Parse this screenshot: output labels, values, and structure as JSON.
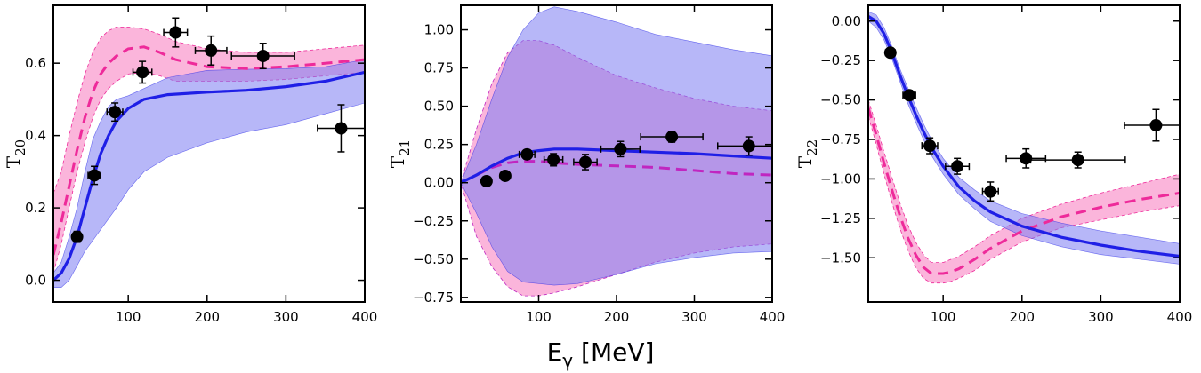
{
  "figure": {
    "xlabel": "E",
    "xlabel_sub": "γ",
    "xlabel_unit": " [MeV]"
  },
  "chart_data": [
    {
      "type": "line",
      "ylabel": "T",
      "ylabel_sub": "20",
      "xlim": [
        5,
        400
      ],
      "ylim": [
        -0.06,
        0.76
      ],
      "xticks": [
        100,
        200,
        300,
        400
      ],
      "xtick_labels": [
        "100",
        "200",
        "300",
        "400"
      ],
      "yticks": [
        0.0,
        0.2,
        0.4,
        0.6
      ],
      "ytick_labels": [
        "0.0",
        "0.2",
        "0.4",
        "0.6"
      ],
      "colors": {
        "blue_line": "#1f1fe6",
        "blue_band": "#7b7bf2",
        "pink_line": "#ee2a9a",
        "pink_band": "#f98ec8",
        "points": "#000000"
      },
      "blue_curve": {
        "x": [
          5,
          15,
          25,
          35,
          45,
          55,
          65,
          75,
          85,
          100,
          120,
          150,
          200,
          250,
          300,
          350,
          400
        ],
        "y": [
          0.0,
          0.02,
          0.06,
          0.12,
          0.2,
          0.28,
          0.35,
          0.4,
          0.44,
          0.475,
          0.5,
          0.513,
          0.52,
          0.525,
          0.535,
          0.55,
          0.575
        ]
      },
      "blue_band": {
        "x": [
          5,
          15,
          25,
          35,
          45,
          55,
          65,
          75,
          85,
          100,
          120,
          150,
          200,
          250,
          300,
          350,
          400
        ],
        "lower": [
          -0.02,
          -0.02,
          0.0,
          0.04,
          0.08,
          0.11,
          0.14,
          0.17,
          0.2,
          0.25,
          0.3,
          0.34,
          0.38,
          0.41,
          0.43,
          0.46,
          0.49
        ],
        "upper": [
          0.02,
          0.05,
          0.12,
          0.2,
          0.3,
          0.39,
          0.44,
          0.48,
          0.5,
          0.51,
          0.53,
          0.56,
          0.58,
          0.583,
          0.585,
          0.59,
          0.61
        ]
      },
      "pink_curve": {
        "x": [
          5,
          15,
          25,
          35,
          45,
          55,
          65,
          75,
          85,
          100,
          120,
          140,
          160,
          200,
          250,
          300,
          350,
          400
        ],
        "y": [
          0.07,
          0.16,
          0.26,
          0.36,
          0.45,
          0.52,
          0.57,
          0.6,
          0.62,
          0.64,
          0.645,
          0.63,
          0.61,
          0.59,
          0.585,
          0.59,
          0.6,
          0.61
        ]
      },
      "pink_band": {
        "x": [
          5,
          15,
          25,
          35,
          45,
          55,
          65,
          75,
          85,
          100,
          120,
          140,
          160,
          200,
          250,
          300,
          350,
          400
        ],
        "lower": [
          0.02,
          0.1,
          0.2,
          0.3,
          0.38,
          0.45,
          0.5,
          0.53,
          0.55,
          0.57,
          0.575,
          0.565,
          0.55,
          0.55,
          0.55,
          0.555,
          0.565,
          0.575
        ],
        "upper": [
          0.24,
          0.3,
          0.4,
          0.49,
          0.57,
          0.63,
          0.67,
          0.69,
          0.7,
          0.7,
          0.695,
          0.68,
          0.66,
          0.64,
          0.63,
          0.63,
          0.64,
          0.65
        ]
      },
      "points": [
        {
          "x": 35,
          "y": 0.12,
          "xerr": 5,
          "yerr": 0.015
        },
        {
          "x": 57,
          "y": 0.29,
          "xerr": 8,
          "yerr": 0.025
        },
        {
          "x": 83,
          "y": 0.465,
          "xerr": 10,
          "yerr": 0.025
        },
        {
          "x": 118,
          "y": 0.575,
          "xerr": 12,
          "yerr": 0.03
        },
        {
          "x": 160,
          "y": 0.685,
          "xerr": 15,
          "yerr": 0.04
        },
        {
          "x": 205,
          "y": 0.635,
          "xerr": 20,
          "yerr": 0.04
        },
        {
          "x": 271,
          "y": 0.62,
          "xerr": 40,
          "yerr": 0.035
        },
        {
          "x": 370,
          "y": 0.42,
          "xerr": 30,
          "yerr": 0.065
        }
      ]
    },
    {
      "type": "line",
      "ylabel": "T",
      "ylabel_sub": "21",
      "xlim": [
        0,
        400
      ],
      "ylim": [
        -0.78,
        1.16
      ],
      "xticks": [
        100,
        200,
        300,
        400
      ],
      "xtick_labels": [
        "100",
        "200",
        "300",
        "400"
      ],
      "yticks": [
        -0.75,
        -0.5,
        -0.25,
        0.0,
        0.25,
        0.5,
        0.75,
        1.0
      ],
      "ytick_labels": [
        "−0.75",
        "−0.50",
        "−0.25",
        "0.00",
        "0.25",
        "0.50",
        "0.75",
        "1.00"
      ],
      "colors": {
        "blue_line": "#1f1fe6",
        "blue_band": "#7b7bf2",
        "pink_line": "#c026c0",
        "pink_band": "#f98ec8",
        "points": "#000000"
      },
      "blue_curve": {
        "x": [
          0,
          20,
          40,
          60,
          80,
          100,
          120,
          150,
          200,
          250,
          300,
          350,
          400
        ],
        "y": [
          0.0,
          0.05,
          0.11,
          0.16,
          0.195,
          0.21,
          0.22,
          0.22,
          0.21,
          0.2,
          0.19,
          0.175,
          0.16
        ]
      },
      "blue_band": {
        "x": [
          0,
          20,
          40,
          60,
          80,
          100,
          120,
          150,
          200,
          250,
          300,
          350,
          400
        ],
        "lower": [
          0.0,
          -0.2,
          -0.42,
          -0.58,
          -0.65,
          -0.66,
          -0.67,
          -0.66,
          -0.6,
          -0.53,
          -0.49,
          -0.46,
          -0.45
        ],
        "upper": [
          0.0,
          0.25,
          0.55,
          0.82,
          1.0,
          1.11,
          1.15,
          1.12,
          1.05,
          0.97,
          0.92,
          0.87,
          0.83
        ]
      },
      "pink_curve": {
        "x": [
          0,
          20,
          40,
          60,
          80,
          100,
          120,
          150,
          200,
          250,
          300,
          350,
          400
        ],
        "y": [
          0.0,
          0.05,
          0.1,
          0.13,
          0.14,
          0.14,
          0.13,
          0.12,
          0.11,
          0.1,
          0.08,
          0.06,
          0.05
        ]
      },
      "pink_band": {
        "x": [
          0,
          20,
          40,
          60,
          80,
          100,
          120,
          150,
          200,
          250,
          300,
          350,
          400
        ],
        "lower": [
          0.0,
          -0.35,
          -0.55,
          -0.68,
          -0.74,
          -0.74,
          -0.72,
          -0.68,
          -0.6,
          -0.52,
          -0.46,
          -0.42,
          -0.4
        ],
        "upper": [
          0.0,
          0.35,
          0.65,
          0.85,
          0.93,
          0.93,
          0.9,
          0.82,
          0.7,
          0.62,
          0.55,
          0.5,
          0.47
        ]
      },
      "points": [
        {
          "x": 33,
          "y": 0.01,
          "xerr": 4,
          "yerr": 0.02
        },
        {
          "x": 57,
          "y": 0.045,
          "xerr": 6,
          "yerr": 0.02
        },
        {
          "x": 85,
          "y": 0.185,
          "xerr": 10,
          "yerr": 0.03
        },
        {
          "x": 119,
          "y": 0.15,
          "xerr": 12,
          "yerr": 0.04
        },
        {
          "x": 160,
          "y": 0.135,
          "xerr": 15,
          "yerr": 0.05
        },
        {
          "x": 205,
          "y": 0.22,
          "xerr": 25,
          "yerr": 0.05
        },
        {
          "x": 271,
          "y": 0.3,
          "xerr": 40,
          "yerr": 0.035
        },
        {
          "x": 370,
          "y": 0.24,
          "xerr": 40,
          "yerr": 0.06
        }
      ]
    },
    {
      "type": "line",
      "ylabel": "T",
      "ylabel_sub": "22",
      "xlim": [
        5,
        400
      ],
      "ylim": [
        -1.78,
        0.1
      ],
      "xticks": [
        100,
        200,
        300,
        400
      ],
      "xtick_labels": [
        "100",
        "200",
        "300",
        "400"
      ],
      "yticks": [
        -1.5,
        -1.25,
        -1.0,
        -0.75,
        -0.5,
        -0.25,
        0.0
      ],
      "ytick_labels": [
        "−1.50",
        "−1.25",
        "−1.00",
        "−0.75",
        "−0.50",
        "−0.25",
        "0.00"
      ],
      "colors": {
        "blue_line": "#1f1fe6",
        "blue_band": "#7b7bf2",
        "pink_line": "#ee2a9a",
        "pink_band": "#f98ec8",
        "points": "#000000"
      },
      "blue_curve": {
        "x": [
          5,
          15,
          25,
          35,
          45,
          55,
          65,
          75,
          85,
          100,
          120,
          140,
          160,
          200,
          250,
          300,
          350,
          400
        ],
        "y": [
          0.03,
          0.0,
          -0.08,
          -0.2,
          -0.34,
          -0.47,
          -0.59,
          -0.7,
          -0.8,
          -0.92,
          -1.05,
          -1.14,
          -1.21,
          -1.3,
          -1.37,
          -1.42,
          -1.46,
          -1.49
        ]
      },
      "blue_band": {
        "x": [
          5,
          15,
          25,
          35,
          45,
          55,
          65,
          75,
          85,
          100,
          120,
          140,
          160,
          200,
          250,
          300,
          350,
          400
        ],
        "lower": [
          0.0,
          -0.04,
          -0.12,
          -0.24,
          -0.38,
          -0.52,
          -0.64,
          -0.75,
          -0.85,
          -0.97,
          -1.1,
          -1.19,
          -1.27,
          -1.36,
          -1.43,
          -1.48,
          -1.51,
          -1.54
        ],
        "upper": [
          0.06,
          0.04,
          -0.04,
          -0.16,
          -0.3,
          -0.42,
          -0.54,
          -0.65,
          -0.75,
          -0.87,
          -0.99,
          -1.07,
          -1.14,
          -1.22,
          -1.28,
          -1.33,
          -1.37,
          -1.41
        ]
      },
      "pink_curve": {
        "x": [
          5,
          15,
          25,
          35,
          45,
          55,
          65,
          75,
          85,
          100,
          110,
          120,
          140,
          160,
          200,
          250,
          300,
          350,
          400
        ],
        "y": [
          -0.55,
          -0.72,
          -0.9,
          -1.07,
          -1.23,
          -1.37,
          -1.48,
          -1.56,
          -1.6,
          -1.6,
          -1.59,
          -1.57,
          -1.51,
          -1.44,
          -1.33,
          -1.24,
          -1.18,
          -1.13,
          -1.09
        ]
      },
      "pink_band": {
        "x": [
          5,
          15,
          25,
          35,
          45,
          55,
          65,
          75,
          85,
          100,
          110,
          120,
          140,
          160,
          200,
          250,
          300,
          350,
          400
        ],
        "lower": [
          -0.6,
          -0.78,
          -0.97,
          -1.15,
          -1.31,
          -1.45,
          -1.56,
          -1.63,
          -1.66,
          -1.66,
          -1.65,
          -1.63,
          -1.58,
          -1.51,
          -1.4,
          -1.31,
          -1.26,
          -1.21,
          -1.17
        ],
        "upper": [
          -0.5,
          -0.66,
          -0.83,
          -0.99,
          -1.15,
          -1.29,
          -1.4,
          -1.48,
          -1.53,
          -1.53,
          -1.51,
          -1.49,
          -1.43,
          -1.36,
          -1.25,
          -1.16,
          -1.09,
          -1.03,
          -0.97
        ]
      },
      "points": [
        {
          "x": 33,
          "y": -0.2,
          "xerr": 6,
          "yerr": 0.025
        },
        {
          "x": 57,
          "y": -0.47,
          "xerr": 8,
          "yerr": 0.03
        },
        {
          "x": 83,
          "y": -0.79,
          "xerr": 10,
          "yerr": 0.05
        },
        {
          "x": 118,
          "y": -0.92,
          "xerr": 15,
          "yerr": 0.05
        },
        {
          "x": 160,
          "y": -1.08,
          "xerr": 10,
          "yerr": 0.06
        },
        {
          "x": 205,
          "y": -0.87,
          "xerr": 25,
          "yerr": 0.06
        },
        {
          "x": 271,
          "y": -0.88,
          "xerr": 60,
          "yerr": 0.05
        },
        {
          "x": 370,
          "y": -0.66,
          "xerr": 40,
          "yerr": 0.1
        }
      ]
    }
  ]
}
